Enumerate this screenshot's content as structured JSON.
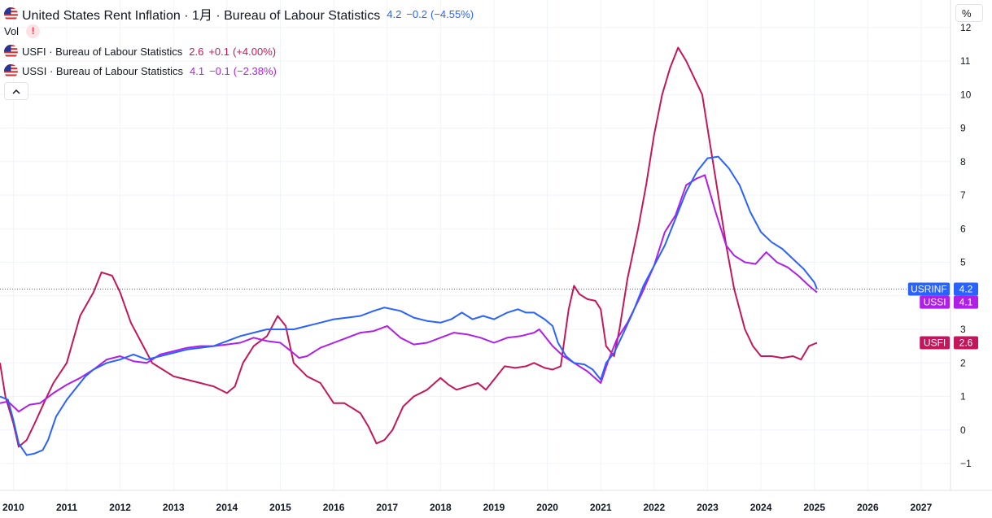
{
  "header": {
    "title": "United States Rent Inflation · 1月 · Bureau of Labour Statistics",
    "value": "4.2",
    "change": "−0.2",
    "change_pct": "(−4.55%)",
    "value_color": "#2962ff"
  },
  "vol_label": "Vol",
  "vol_warning": "!",
  "unit_button": "%",
  "comparisons": [
    {
      "label": "USFI · Bureau of Labour Statistics",
      "value": "2.6",
      "change": "+0.1",
      "change_pct": "(+4.00%)",
      "color": "#c2185b"
    },
    {
      "label": "USSI · Bureau of Labour Statistics",
      "value": "4.1",
      "change": "−0.1",
      "change_pct": "(−2.38%)",
      "color": "#b01fe8"
    }
  ],
  "collapse_icon": "chevron-up-icon",
  "chart_data": {
    "type": "line",
    "xlim": [
      2009.75,
      2027.55
    ],
    "ylim": [
      -1.5,
      12.3
    ],
    "x_ticks": [
      2010,
      2011,
      2012,
      2013,
      2014,
      2015,
      2016,
      2017,
      2018,
      2019,
      2020,
      2021,
      2022,
      2023,
      2024,
      2025,
      2026,
      2027
    ],
    "x_tick_labels": [
      "2010",
      "2011",
      "2012",
      "2013",
      "2014",
      "2015",
      "2016",
      "2017",
      "2018",
      "2019",
      "2020",
      "2021",
      "2022",
      "2023",
      "2024",
      "2025",
      "2026",
      "2027"
    ],
    "y_ticks": [
      -1,
      0,
      1,
      2,
      3,
      4,
      5,
      6,
      7,
      8,
      9,
      10,
      11,
      12
    ],
    "y_tick_labels": [
      "−1",
      "0",
      "1",
      "2",
      "3",
      "4",
      "5",
      "6",
      "7",
      "8",
      "9",
      "10",
      "11",
      "12"
    ],
    "reference_line": 4.2,
    "series": [
      {
        "name": "USRINF",
        "label_value": "4.2",
        "color": "#2962ff",
        "points": [
          [
            2009.75,
            1.0
          ],
          [
            2009.9,
            0.9
          ],
          [
            2010.0,
            0.3
          ],
          [
            2010.1,
            -0.4
          ],
          [
            2010.25,
            -0.75
          ],
          [
            2010.4,
            -0.7
          ],
          [
            2010.55,
            -0.6
          ],
          [
            2010.65,
            -0.3
          ],
          [
            2010.8,
            0.4
          ],
          [
            2011.0,
            0.9
          ],
          [
            2011.2,
            1.3
          ],
          [
            2011.35,
            1.6
          ],
          [
            2011.5,
            1.8
          ],
          [
            2011.75,
            2.0
          ],
          [
            2012.0,
            2.1
          ],
          [
            2012.25,
            2.25
          ],
          [
            2012.5,
            2.1
          ],
          [
            2012.75,
            2.2
          ],
          [
            2013.0,
            2.3
          ],
          [
            2013.25,
            2.4
          ],
          [
            2013.5,
            2.45
          ],
          [
            2013.75,
            2.5
          ],
          [
            2014.0,
            2.65
          ],
          [
            2014.25,
            2.8
          ],
          [
            2014.5,
            2.9
          ],
          [
            2014.75,
            3.0
          ],
          [
            2015.0,
            3.0
          ],
          [
            2015.25,
            3.0
          ],
          [
            2015.5,
            3.1
          ],
          [
            2015.75,
            3.2
          ],
          [
            2016.0,
            3.3
          ],
          [
            2016.25,
            3.35
          ],
          [
            2016.5,
            3.4
          ],
          [
            2016.75,
            3.55
          ],
          [
            2016.95,
            3.65
          ],
          [
            2017.25,
            3.55
          ],
          [
            2017.5,
            3.35
          ],
          [
            2017.75,
            3.25
          ],
          [
            2018.0,
            3.2
          ],
          [
            2018.2,
            3.3
          ],
          [
            2018.4,
            3.5
          ],
          [
            2018.6,
            3.3
          ],
          [
            2018.8,
            3.4
          ],
          [
            2019.0,
            3.3
          ],
          [
            2019.25,
            3.5
          ],
          [
            2019.45,
            3.6
          ],
          [
            2019.6,
            3.5
          ],
          [
            2019.75,
            3.5
          ],
          [
            2019.95,
            3.3
          ],
          [
            2020.1,
            3.1
          ],
          [
            2020.2,
            2.6
          ],
          [
            2020.35,
            2.2
          ],
          [
            2020.5,
            2.0
          ],
          [
            2020.7,
            1.95
          ],
          [
            2020.85,
            1.8
          ],
          [
            2021.0,
            1.5
          ],
          [
            2021.1,
            2.0
          ],
          [
            2021.25,
            2.3
          ],
          [
            2021.4,
            2.8
          ],
          [
            2021.6,
            3.5
          ],
          [
            2021.8,
            4.3
          ],
          [
            2022.0,
            4.9
          ],
          [
            2022.2,
            5.5
          ],
          [
            2022.4,
            6.3
          ],
          [
            2022.6,
            7.1
          ],
          [
            2022.8,
            7.7
          ],
          [
            2023.0,
            8.1
          ],
          [
            2023.2,
            8.15
          ],
          [
            2023.4,
            7.8
          ],
          [
            2023.6,
            7.3
          ],
          [
            2023.8,
            6.5
          ],
          [
            2024.0,
            5.9
          ],
          [
            2024.2,
            5.6
          ],
          [
            2024.4,
            5.4
          ],
          [
            2024.6,
            5.1
          ],
          [
            2024.8,
            4.8
          ],
          [
            2025.0,
            4.4
          ],
          [
            2025.05,
            4.2
          ]
        ]
      },
      {
        "name": "USSI",
        "label_value": "4.1",
        "color": "#b01fe8",
        "points": [
          [
            2009.75,
            0.8
          ],
          [
            2009.9,
            0.85
          ],
          [
            2010.0,
            0.7
          ],
          [
            2010.1,
            0.55
          ],
          [
            2010.3,
            0.75
          ],
          [
            2010.5,
            0.8
          ],
          [
            2010.75,
            1.1
          ],
          [
            2011.0,
            1.35
          ],
          [
            2011.25,
            1.55
          ],
          [
            2011.5,
            1.8
          ],
          [
            2011.75,
            2.1
          ],
          [
            2012.0,
            2.2
          ],
          [
            2012.25,
            2.05
          ],
          [
            2012.5,
            2.0
          ],
          [
            2012.75,
            2.25
          ],
          [
            2013.0,
            2.35
          ],
          [
            2013.25,
            2.45
          ],
          [
            2013.5,
            2.5
          ],
          [
            2013.75,
            2.5
          ],
          [
            2014.0,
            2.55
          ],
          [
            2014.25,
            2.6
          ],
          [
            2014.5,
            2.75
          ],
          [
            2014.75,
            2.65
          ],
          [
            2015.0,
            2.6
          ],
          [
            2015.2,
            2.35
          ],
          [
            2015.35,
            2.15
          ],
          [
            2015.5,
            2.2
          ],
          [
            2015.75,
            2.45
          ],
          [
            2016.0,
            2.6
          ],
          [
            2016.25,
            2.75
          ],
          [
            2016.5,
            2.9
          ],
          [
            2016.75,
            2.95
          ],
          [
            2017.0,
            3.1
          ],
          [
            2017.25,
            2.75
          ],
          [
            2017.5,
            2.55
          ],
          [
            2017.75,
            2.6
          ],
          [
            2018.0,
            2.75
          ],
          [
            2018.25,
            2.9
          ],
          [
            2018.5,
            2.85
          ],
          [
            2018.75,
            2.75
          ],
          [
            2019.0,
            2.6
          ],
          [
            2019.25,
            2.75
          ],
          [
            2019.5,
            2.8
          ],
          [
            2019.75,
            2.9
          ],
          [
            2019.85,
            3.0
          ],
          [
            2019.95,
            2.8
          ],
          [
            2020.1,
            2.5
          ],
          [
            2020.3,
            2.2
          ],
          [
            2020.5,
            2.0
          ],
          [
            2020.75,
            1.75
          ],
          [
            2021.0,
            1.4
          ],
          [
            2021.15,
            2.1
          ],
          [
            2021.3,
            2.7
          ],
          [
            2021.5,
            3.2
          ],
          [
            2021.75,
            4.0
          ],
          [
            2022.0,
            4.9
          ],
          [
            2022.2,
            5.9
          ],
          [
            2022.4,
            6.4
          ],
          [
            2022.6,
            7.3
          ],
          [
            2022.8,
            7.5
          ],
          [
            2022.95,
            7.6
          ],
          [
            2023.15,
            6.5
          ],
          [
            2023.35,
            5.5
          ],
          [
            2023.5,
            5.2
          ],
          [
            2023.7,
            5.0
          ],
          [
            2023.9,
            4.95
          ],
          [
            2024.1,
            5.3
          ],
          [
            2024.3,
            5.0
          ],
          [
            2024.5,
            4.85
          ],
          [
            2024.7,
            4.6
          ],
          [
            2024.9,
            4.3
          ],
          [
            2025.05,
            4.1
          ]
        ]
      },
      {
        "name": "USFI",
        "label_value": "2.6",
        "color": "#c2185b",
        "points": [
          [
            2009.75,
            2.0
          ],
          [
            2009.85,
            1.0
          ],
          [
            2010.0,
            0.2
          ],
          [
            2010.1,
            -0.5
          ],
          [
            2010.25,
            -0.3
          ],
          [
            2010.4,
            0.2
          ],
          [
            2010.6,
            0.9
          ],
          [
            2010.75,
            1.4
          ],
          [
            2011.0,
            2.0
          ],
          [
            2011.25,
            3.4
          ],
          [
            2011.5,
            4.1
          ],
          [
            2011.65,
            4.7
          ],
          [
            2011.85,
            4.6
          ],
          [
            2012.0,
            4.1
          ],
          [
            2012.2,
            3.2
          ],
          [
            2012.4,
            2.6
          ],
          [
            2012.6,
            2.0
          ],
          [
            2012.8,
            1.8
          ],
          [
            2013.0,
            1.6
          ],
          [
            2013.25,
            1.5
          ],
          [
            2013.5,
            1.4
          ],
          [
            2013.75,
            1.3
          ],
          [
            2014.0,
            1.1
          ],
          [
            2014.15,
            1.3
          ],
          [
            2014.3,
            2.0
          ],
          [
            2014.5,
            2.5
          ],
          [
            2014.75,
            2.8
          ],
          [
            2014.95,
            3.4
          ],
          [
            2015.1,
            3.1
          ],
          [
            2015.25,
            2.0
          ],
          [
            2015.5,
            1.6
          ],
          [
            2015.75,
            1.4
          ],
          [
            2016.0,
            0.8
          ],
          [
            2016.2,
            0.8
          ],
          [
            2016.35,
            0.65
          ],
          [
            2016.5,
            0.5
          ],
          [
            2016.65,
            0.1
          ],
          [
            2016.8,
            -0.4
          ],
          [
            2016.95,
            -0.3
          ],
          [
            2017.1,
            0.0
          ],
          [
            2017.3,
            0.7
          ],
          [
            2017.5,
            1.0
          ],
          [
            2017.75,
            1.2
          ],
          [
            2018.0,
            1.55
          ],
          [
            2018.15,
            1.35
          ],
          [
            2018.3,
            1.2
          ],
          [
            2018.5,
            1.3
          ],
          [
            2018.7,
            1.4
          ],
          [
            2018.85,
            1.2
          ],
          [
            2019.0,
            1.5
          ],
          [
            2019.2,
            1.9
          ],
          [
            2019.4,
            1.85
          ],
          [
            2019.6,
            1.9
          ],
          [
            2019.75,
            2.0
          ],
          [
            2019.95,
            1.85
          ],
          [
            2020.1,
            1.8
          ],
          [
            2020.25,
            1.9
          ],
          [
            2020.4,
            3.6
          ],
          [
            2020.5,
            4.3
          ],
          [
            2020.6,
            4.05
          ],
          [
            2020.75,
            3.9
          ],
          [
            2020.9,
            3.85
          ],
          [
            2021.0,
            3.6
          ],
          [
            2021.1,
            2.5
          ],
          [
            2021.25,
            2.2
          ],
          [
            2021.35,
            3.0
          ],
          [
            2021.5,
            4.5
          ],
          [
            2021.7,
            6.0
          ],
          [
            2021.85,
            7.3
          ],
          [
            2022.0,
            8.8
          ],
          [
            2022.15,
            10.0
          ],
          [
            2022.3,
            10.8
          ],
          [
            2022.45,
            11.4
          ],
          [
            2022.6,
            11.0
          ],
          [
            2022.75,
            10.5
          ],
          [
            2022.9,
            10.0
          ],
          [
            2023.0,
            9.0
          ],
          [
            2023.15,
            7.5
          ],
          [
            2023.35,
            5.5
          ],
          [
            2023.5,
            4.2
          ],
          [
            2023.7,
            3.0
          ],
          [
            2023.85,
            2.5
          ],
          [
            2024.0,
            2.2
          ],
          [
            2024.2,
            2.2
          ],
          [
            2024.4,
            2.15
          ],
          [
            2024.6,
            2.2
          ],
          [
            2024.75,
            2.1
          ],
          [
            2024.9,
            2.5
          ],
          [
            2025.05,
            2.6
          ]
        ]
      }
    ]
  }
}
